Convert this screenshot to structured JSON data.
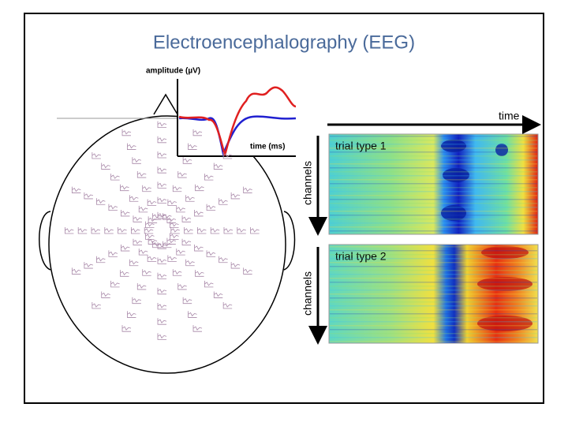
{
  "title": "Electroencephalography (EEG)",
  "erp": {
    "y_label": "amplitude (µV)",
    "x_label": "time (ms)"
  },
  "time_axis": "time",
  "panels": [
    {
      "label": "trial type 1",
      "axis_label": "channels"
    },
    {
      "label": "trial type 2",
      "axis_label": "channels"
    }
  ]
}
